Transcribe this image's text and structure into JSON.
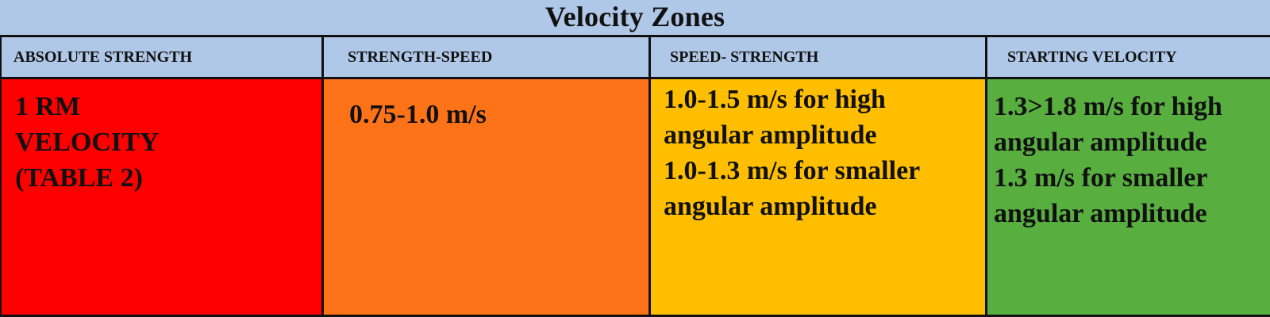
{
  "title": "Velocity Zones",
  "colors": {
    "header_background": "#b0c8e8",
    "absolute_strength": "#ff0000",
    "strength_speed": "#ff7318",
    "speed_strength": "#ffbf00",
    "starting_velocity": "#58af40",
    "border": "#111111"
  },
  "columns": [
    {
      "header": "ABSOLUTE STRENGTH",
      "lines": [
        "1 RM",
        "VELOCITY",
        "(TABLE 2)"
      ]
    },
    {
      "header": "STRENGTH-SPEED",
      "lines": [
        "0.75-1.0 m/s"
      ]
    },
    {
      "header": "SPEED- STRENGTH",
      "lines": [
        "1.0-1.5 m/s for high",
        "angular amplitude",
        "1.0-1.3 m/s for smaller",
        "angular amplitude"
      ]
    },
    {
      "header": "STARTING VELOCITY",
      "lines": [
        "1.3>1.8 m/s for high",
        "angular amplitude",
        "1.3 m/s for smaller",
        "angular amplitude"
      ]
    }
  ]
}
